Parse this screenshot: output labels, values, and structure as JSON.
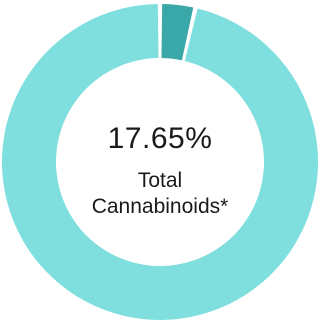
{
  "chart_data": {
    "type": "pie",
    "variant": "donut",
    "slices": [
      {
        "value": 3.6,
        "color": "#3aa8a8"
      },
      {
        "value": 96.4,
        "color": "#7fdede"
      }
    ],
    "start_angle_deg": 0,
    "center_value": "17.65%",
    "center_caption_line1": "Total",
    "center_caption_line2": "Cannabinoids*"
  },
  "colors": {
    "slice_minor": "#3aa8a8",
    "slice_major": "#7fdede",
    "background": "#ffffff"
  }
}
